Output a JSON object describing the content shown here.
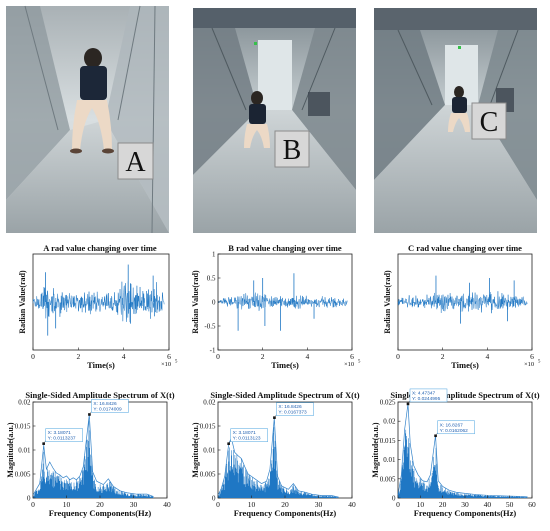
{
  "photos": [
    {
      "label": "A"
    },
    {
      "label": "B"
    },
    {
      "label": "C"
    }
  ],
  "colors": {
    "signal": "#1f77c4",
    "tip_border": "#4aa3df",
    "tip_text": "#1f5fb0"
  },
  "chart_data": [
    {
      "type": "line",
      "title": "A rad value changing over time",
      "xlabel": "Time(s)",
      "ylabel": "Radian Value(rad)",
      "xlim": [
        0,
        6
      ],
      "ylim": [
        -1,
        1
      ],
      "x_exponent": "×10",
      "x_exponent_power": "5",
      "x_ticks": [
        0,
        2,
        4,
        6
      ],
      "y_ticks": [],
      "envelope": [
        {
          "x": 0,
          "amp": 0.08
        },
        {
          "x": 0.3,
          "amp": 0.18
        },
        {
          "x": 0.6,
          "amp": 0.38
        },
        {
          "x": 1.0,
          "amp": 0.3
        },
        {
          "x": 1.4,
          "amp": 0.22
        },
        {
          "x": 2.0,
          "amp": 0.2
        },
        {
          "x": 2.6,
          "amp": 0.24
        },
        {
          "x": 3.0,
          "amp": 0.18
        },
        {
          "x": 3.4,
          "amp": 0.22
        },
        {
          "x": 3.9,
          "amp": 0.35
        },
        {
          "x": 4.2,
          "amp": 0.6
        },
        {
          "x": 4.5,
          "amp": 0.3
        },
        {
          "x": 5.0,
          "amp": 0.25
        },
        {
          "x": 5.4,
          "amp": 0.4
        },
        {
          "x": 5.8,
          "amp": 0.12
        }
      ],
      "spikes": [
        {
          "x": 0.55,
          "y": 0.62
        },
        {
          "x": 0.65,
          "y": -0.7
        },
        {
          "x": 1.0,
          "y": -0.55
        },
        {
          "x": 4.2,
          "y": 0.78
        },
        {
          "x": 4.3,
          "y": -0.45
        },
        {
          "x": 5.3,
          "y": 0.55
        }
      ]
    },
    {
      "type": "line",
      "title": "B rad value changing over time",
      "xlabel": "Time(s)",
      "ylabel": "Radian Value(rad)",
      "xlim": [
        0,
        6
      ],
      "ylim": [
        -1,
        1
      ],
      "x_exponent": "×10",
      "x_exponent_power": "5",
      "x_ticks": [
        0,
        2,
        4,
        6
      ],
      "y_ticks": [
        1,
        0.5,
        0,
        -0.5,
        -1
      ],
      "envelope": [
        {
          "x": 0,
          "amp": 0.06
        },
        {
          "x": 0.5,
          "amp": 0.1
        },
        {
          "x": 1.0,
          "amp": 0.12
        },
        {
          "x": 1.5,
          "amp": 0.18
        },
        {
          "x": 2.0,
          "amp": 0.14
        },
        {
          "x": 2.5,
          "amp": 0.12
        },
        {
          "x": 3.0,
          "amp": 0.1
        },
        {
          "x": 3.5,
          "amp": 0.13
        },
        {
          "x": 4.0,
          "amp": 0.12
        },
        {
          "x": 4.5,
          "amp": 0.1
        },
        {
          "x": 5.0,
          "amp": 0.11
        },
        {
          "x": 5.6,
          "amp": 0.08
        }
      ],
      "spikes": [
        {
          "x": 0.9,
          "y": -0.6
        },
        {
          "x": 1.6,
          "y": 0.45
        },
        {
          "x": 2.0,
          "y": 0.5
        },
        {
          "x": 2.1,
          "y": -0.5
        },
        {
          "x": 2.8,
          "y": -0.6
        },
        {
          "x": 3.4,
          "y": 0.6
        },
        {
          "x": 4.3,
          "y": -0.35
        }
      ]
    },
    {
      "type": "line",
      "title": "C rad value changing over time",
      "xlabel": "Time(s)",
      "ylabel": "Radian Value(rad)",
      "xlim": [
        0,
        6
      ],
      "ylim": [
        -1,
        1
      ],
      "x_exponent": "×10",
      "x_exponent_power": "5",
      "x_ticks": [
        0,
        2,
        4,
        6
      ],
      "y_ticks": [],
      "envelope": [
        {
          "x": 0,
          "amp": 0.08
        },
        {
          "x": 0.5,
          "amp": 0.14
        },
        {
          "x": 1.0,
          "amp": 0.12
        },
        {
          "x": 1.6,
          "amp": 0.2
        },
        {
          "x": 2.2,
          "amp": 0.18
        },
        {
          "x": 2.8,
          "amp": 0.16
        },
        {
          "x": 3.3,
          "amp": 0.2
        },
        {
          "x": 3.9,
          "amp": 0.18
        },
        {
          "x": 4.4,
          "amp": 0.22
        },
        {
          "x": 5.0,
          "amp": 0.18
        },
        {
          "x": 5.6,
          "amp": 0.1
        }
      ],
      "spikes": [
        {
          "x": 1.7,
          "y": 0.55
        },
        {
          "x": 2.8,
          "y": -0.45
        },
        {
          "x": 3.2,
          "y": 0.4
        },
        {
          "x": 4.1,
          "y": 0.5
        },
        {
          "x": 4.9,
          "y": -0.4
        },
        {
          "x": 5.2,
          "y": 0.45
        }
      ]
    },
    {
      "type": "area",
      "title": "Single-Sided Amplitude Spectrum of X(t)",
      "xlabel": "Frequency Components(Hz)",
      "ylabel": "Magnitude(a.u.)",
      "xlim": [
        0,
        40
      ],
      "ylim": [
        0,
        0.02
      ],
      "x_ticks": [
        0,
        10,
        20,
        30,
        40
      ],
      "y_ticks": [
        0.02,
        0.015,
        0.01,
        0.005,
        0
      ],
      "y_tick_labels": [
        "0.02",
        "0.015",
        "0.01",
        "0.005",
        "0"
      ],
      "envelope": [
        {
          "x": 0,
          "y": 0.0006
        },
        {
          "x": 1,
          "y": 0.0018
        },
        {
          "x": 2,
          "y": 0.003
        },
        {
          "x": 3.2,
          "y": 0.011
        },
        {
          "x": 4,
          "y": 0.006
        },
        {
          "x": 5,
          "y": 0.0075
        },
        {
          "x": 6,
          "y": 0.0062
        },
        {
          "x": 7,
          "y": 0.0052
        },
        {
          "x": 8,
          "y": 0.0048
        },
        {
          "x": 9,
          "y": 0.0042
        },
        {
          "x": 10,
          "y": 0.0046
        },
        {
          "x": 11,
          "y": 0.0038
        },
        {
          "x": 12,
          "y": 0.0042
        },
        {
          "x": 13,
          "y": 0.0038
        },
        {
          "x": 14,
          "y": 0.0046
        },
        {
          "x": 15,
          "y": 0.0065
        },
        {
          "x": 16.8,
          "y": 0.0174
        },
        {
          "x": 17.8,
          "y": 0.0055
        },
        {
          "x": 19,
          "y": 0.0035
        },
        {
          "x": 21,
          "y": 0.0028
        },
        {
          "x": 22.5,
          "y": 0.004
        },
        {
          "x": 24,
          "y": 0.0024
        },
        {
          "x": 26,
          "y": 0.0015
        },
        {
          "x": 28,
          "y": 0.0011
        },
        {
          "x": 31,
          "y": 0.0008
        },
        {
          "x": 34,
          "y": 0.0008
        },
        {
          "x": 36,
          "y": 0.0003
        }
      ],
      "annotations": [
        {
          "x": 3.18071,
          "y": 0.0113237,
          "line1": "X: 3.18071",
          "line2": "Y: 0.0113237"
        },
        {
          "x": 16.8426,
          "y": 0.0174009,
          "line1": "X: 16.8426",
          "line2": "Y: 0.0174009"
        }
      ]
    },
    {
      "type": "area",
      "title": "Single-Sided Amplitude Spectrum of X(t)",
      "xlabel": "Frequency Components(Hz)",
      "ylabel": "Magnitude(a.u.)",
      "xlim": [
        0,
        40
      ],
      "ylim": [
        0,
        0.02
      ],
      "x_ticks": [
        0,
        10,
        20,
        30,
        40
      ],
      "y_ticks": [
        0.02,
        0.015,
        0.01,
        0.005,
        0
      ],
      "y_tick_labels": [
        "0.02",
        "0.015",
        "0.01",
        "0.005",
        "0"
      ],
      "envelope": [
        {
          "x": 0,
          "y": 0.0006
        },
        {
          "x": 1,
          "y": 0.002
        },
        {
          "x": 2,
          "y": 0.0045
        },
        {
          "x": 3.2,
          "y": 0.0113
        },
        {
          "x": 4,
          "y": 0.0125
        },
        {
          "x": 5,
          "y": 0.0095
        },
        {
          "x": 6,
          "y": 0.0088
        },
        {
          "x": 7,
          "y": 0.0082
        },
        {
          "x": 8,
          "y": 0.0065
        },
        {
          "x": 9,
          "y": 0.005
        },
        {
          "x": 10,
          "y": 0.0045
        },
        {
          "x": 11,
          "y": 0.004
        },
        {
          "x": 12,
          "y": 0.0035
        },
        {
          "x": 13,
          "y": 0.003
        },
        {
          "x": 14.5,
          "y": 0.0035
        },
        {
          "x": 15.5,
          "y": 0.006
        },
        {
          "x": 16.8,
          "y": 0.0167
        },
        {
          "x": 17.8,
          "y": 0.0045
        },
        {
          "x": 19,
          "y": 0.0025
        },
        {
          "x": 21,
          "y": 0.0018
        },
        {
          "x": 22.5,
          "y": 0.003
        },
        {
          "x": 24,
          "y": 0.0015
        },
        {
          "x": 26,
          "y": 0.0012
        },
        {
          "x": 28,
          "y": 0.0008
        },
        {
          "x": 31,
          "y": 0.0005
        },
        {
          "x": 34,
          "y": 0.0005
        },
        {
          "x": 36,
          "y": 0.0002
        }
      ],
      "annotations": [
        {
          "x": 3.18071,
          "y": 0.0113123,
          "line1": "X: 3.18071",
          "line2": "Y: 0.0113123"
        },
        {
          "x": 16.8426,
          "y": 0.0167373,
          "line1": "X: 16.8426",
          "line2": "Y: 0.0167373"
        }
      ]
    },
    {
      "type": "area",
      "title": "Single-Sided Amplitude Spectrum of X(t)",
      "xlabel": "Frequency Components(Hz)",
      "ylabel": "Magnitude(a.u.)",
      "xlim": [
        0,
        60
      ],
      "ylim": [
        0,
        0.025
      ],
      "x_ticks": [
        0,
        10,
        20,
        30,
        40,
        50,
        60
      ],
      "y_ticks": [
        0.025,
        0.02,
        0.015,
        0.01,
        0.005,
        0
      ],
      "y_tick_labels": [
        "0.025",
        "0.02",
        "0.015",
        "0.01",
        "0.005",
        "0"
      ],
      "envelope": [
        {
          "x": 0,
          "y": 0.0008
        },
        {
          "x": 1.5,
          "y": 0.006
        },
        {
          "x": 3,
          "y": 0.018
        },
        {
          "x": 4.47,
          "y": 0.0245
        },
        {
          "x": 5.5,
          "y": 0.014
        },
        {
          "x": 7,
          "y": 0.0085
        },
        {
          "x": 9,
          "y": 0.006
        },
        {
          "x": 11,
          "y": 0.0045
        },
        {
          "x": 13,
          "y": 0.0042
        },
        {
          "x": 14.5,
          "y": 0.006
        },
        {
          "x": 16.8,
          "y": 0.0163
        },
        {
          "x": 18,
          "y": 0.0045
        },
        {
          "x": 20,
          "y": 0.003
        },
        {
          "x": 23,
          "y": 0.002
        },
        {
          "x": 26,
          "y": 0.0015
        },
        {
          "x": 30,
          "y": 0.0012
        },
        {
          "x": 35,
          "y": 0.0009
        },
        {
          "x": 40,
          "y": 0.0007
        },
        {
          "x": 45,
          "y": 0.0006
        },
        {
          "x": 50,
          "y": 0.0005
        },
        {
          "x": 55,
          "y": 0.0004
        },
        {
          "x": 58,
          "y": 0.0003
        }
      ],
      "annotations": [
        {
          "x": 4.47347,
          "y": 0.0244995,
          "line1": "X: 4.47347",
          "line2": "Y: 0.0244995"
        },
        {
          "x": 16.8267,
          "y": 0.0162062,
          "line1": "X: 16.8267",
          "line2": "Y: 0.0162062"
        }
      ]
    }
  ]
}
